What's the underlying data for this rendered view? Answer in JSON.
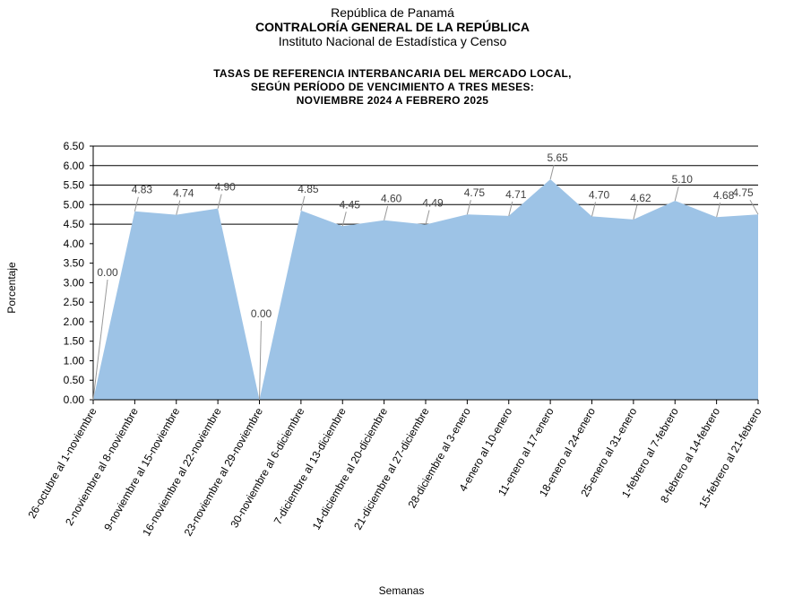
{
  "header": {
    "line1": "República de Panamá",
    "line2": "CONTRALORÍA GENERAL DE LA REPÚBLICA",
    "line3": "Instituto Nacional de Estadística y Censo"
  },
  "chart_data": {
    "type": "area",
    "title": [
      "TASAS DE REFERENCIA  INTERBANCARIA  DEL MERCADO LOCAL,",
      "SEGÚN PERÍODO DE VENCIMIENTO  A TRES MESES:",
      "NOVIEMBRE  2024  A FEBRERO  2025"
    ],
    "xlabel": "Semanas",
    "ylabel": "Porcentaje",
    "ylim": [
      0,
      6.5
    ],
    "yticks": [
      "0.00",
      "0.50",
      "1.00",
      "1.50",
      "2.00",
      "2.50",
      "3.00",
      "3.50",
      "4.00",
      "4.50",
      "5.00",
      "5.50",
      "6.00",
      "6.50"
    ],
    "gridlines_at": [
      4.5,
      5.0,
      5.5,
      6.0,
      6.5
    ],
    "fill_color": "#9dc3e6",
    "categories": [
      "26-octubre al 1-noviembre",
      "2-noviembre al 8-noviembre",
      "9-noviembre al 15-noviembre",
      "16-noviembre al 22-noviembre",
      "23-noviembre al 29-noviembre",
      "30-noviembre al 6-diciembre",
      "7-diciembre al 13-diciembre",
      "14-diciembre al 20-diciembre",
      "21-diciembre al 27-diciembre",
      "28-diciembre al 3-enero",
      "4-enero al 10-enero",
      "11-enero al 17-enero",
      "18-enero al 24-enero",
      "25-enero al 31-enero",
      "1-febrero al 7-febrero",
      "8-febrero al 14-febrero",
      "15-febrero al 21-febrero"
    ],
    "values": [
      0.0,
      4.83,
      4.74,
      4.9,
      0.0,
      4.85,
      4.45,
      4.6,
      4.49,
      4.75,
      4.71,
      5.65,
      4.7,
      4.62,
      5.1,
      4.68,
      4.75
    ],
    "data_labels": [
      "0.00",
      "4.83",
      "4.74",
      "4.90",
      "0.00",
      "4.85",
      "4.45",
      "4.60",
      "4.49",
      "4.75",
      "4.71",
      "5.65",
      "4.70",
      "4.62",
      "5.10",
      "4.68",
      "4.75"
    ]
  }
}
